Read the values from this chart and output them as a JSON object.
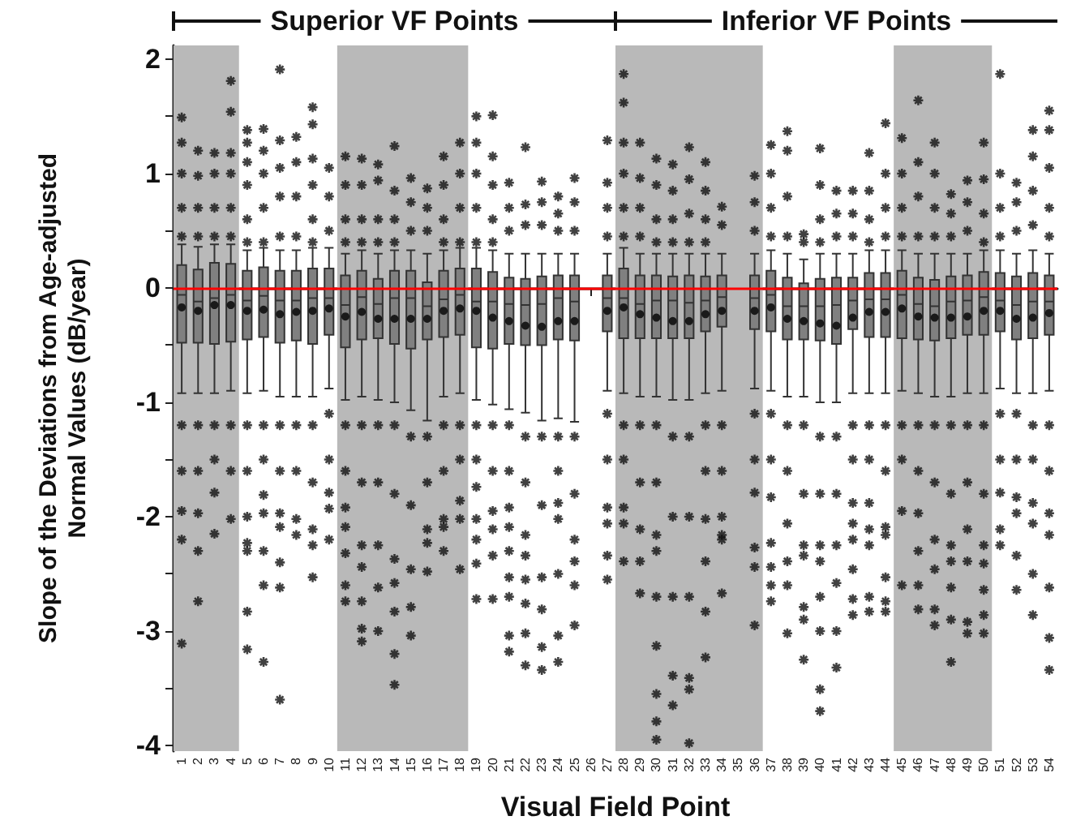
{
  "chart_data": {
    "type": "box",
    "xlabel": "Visual Field Point",
    "ylabel": "Slope of the Deviations from Age-adjusted\nNormal Values (dB/year)",
    "annotations": [
      "Superior VF Points",
      "Inferior VF Points"
    ],
    "categories": [
      "1",
      "2",
      "3",
      "4",
      "5",
      "6",
      "7",
      "8",
      "9",
      "10",
      "11",
      "12",
      "13",
      "14",
      "15",
      "16",
      "17",
      "18",
      "19",
      "20",
      "21",
      "22",
      "23",
      "24",
      "25",
      "26",
      "27",
      "28",
      "29",
      "30",
      "31",
      "32",
      "33",
      "34",
      "35",
      "36",
      "37",
      "38",
      "39",
      "40",
      "41",
      "42",
      "43",
      "44",
      "45",
      "46",
      "47",
      "48",
      "49",
      "50",
      "51",
      "52",
      "53",
      "54"
    ],
    "color": "#808080",
    "boxes": [
      {
        "low": -0.92,
        "q1": -0.48,
        "median": -0.06,
        "q3": 0.2,
        "high": 0.38,
        "mean": -0.17,
        "outliers": [
          1.49,
          1.27,
          1.0,
          0.7,
          0.45,
          -1.2,
          -1.6,
          -1.95,
          -2.2,
          -3.11
        ]
      },
      {
        "low": -0.92,
        "q1": -0.48,
        "median": -0.12,
        "q3": 0.16,
        "high": 0.36,
        "mean": -0.2,
        "outliers": [
          1.2,
          0.98,
          0.7,
          0.45,
          -1.2,
          -1.6,
          -1.97,
          -2.3,
          -2.74
        ]
      },
      {
        "low": -0.92,
        "q1": -0.49,
        "median": -0.09,
        "q3": 0.22,
        "high": 0.38,
        "mean": -0.15,
        "outliers": [
          1.18,
          1.0,
          0.7,
          0.45,
          -1.2,
          -1.5,
          -1.79,
          -2.15
        ]
      },
      {
        "low": -0.9,
        "q1": -0.47,
        "median": -0.06,
        "q3": 0.21,
        "high": 0.38,
        "mean": -0.15,
        "outliers": [
          1.81,
          1.54,
          1.18,
          1.0,
          0.7,
          0.45,
          -1.2,
          -1.6,
          -2.02
        ]
      },
      {
        "low": -0.92,
        "q1": -0.45,
        "median": -0.11,
        "q3": 0.15,
        "high": 0.33,
        "mean": -0.2,
        "outliers": [
          1.38,
          1.27,
          1.1,
          0.9,
          0.6,
          0.4,
          -1.2,
          -1.6,
          -2.0,
          -2.23,
          -2.3,
          -2.83,
          -3.16
        ]
      },
      {
        "low": -0.9,
        "q1": -0.43,
        "median": -0.07,
        "q3": 0.18,
        "high": 0.35,
        "mean": -0.19,
        "outliers": [
          1.39,
          1.2,
          1.0,
          0.7,
          0.4,
          -1.2,
          -1.5,
          -1.81,
          -1.97,
          -2.3,
          -2.6,
          -3.27
        ]
      },
      {
        "low": -0.95,
        "q1": -0.48,
        "median": -0.11,
        "q3": 0.15,
        "high": 0.33,
        "mean": -0.23,
        "outliers": [
          1.91,
          1.29,
          1.05,
          0.8,
          0.45,
          -1.2,
          -1.6,
          -1.97,
          -2.09,
          -2.4,
          -2.62,
          -3.6
        ]
      },
      {
        "low": -0.95,
        "q1": -0.46,
        "median": -0.11,
        "q3": 0.15,
        "high": 0.33,
        "mean": -0.21,
        "outliers": [
          1.32,
          1.1,
          0.8,
          0.45,
          -1.2,
          -1.6,
          -2.02,
          -2.16
        ]
      },
      {
        "low": -0.95,
        "q1": -0.49,
        "median": -0.09,
        "q3": 0.17,
        "high": 0.35,
        "mean": -0.2,
        "outliers": [
          1.58,
          1.43,
          1.13,
          0.9,
          0.6,
          0.4,
          -1.2,
          -1.7,
          -2.11,
          -2.25,
          -2.53
        ]
      },
      {
        "low": -0.88,
        "q1": -0.41,
        "median": -0.09,
        "q3": 0.17,
        "high": 0.35,
        "mean": -0.18,
        "outliers": [
          1.05,
          0.8,
          0.5,
          -1.1,
          -1.5,
          -1.79,
          -1.93,
          -2.2
        ]
      },
      {
        "low": -0.98,
        "q1": -0.52,
        "median": -0.15,
        "q3": 0.11,
        "high": 0.3,
        "mean": -0.25,
        "outliers": [
          1.15,
          0.9,
          0.6,
          0.4,
          -1.2,
          -1.6,
          -1.92,
          -2.09,
          -2.32,
          -2.6,
          -2.74
        ]
      },
      {
        "low": -0.95,
        "q1": -0.45,
        "median": -0.08,
        "q3": 0.15,
        "high": 0.33,
        "mean": -0.21,
        "outliers": [
          1.13,
          0.9,
          0.6,
          0.4,
          -1.2,
          -1.7,
          -2.25,
          -2.44,
          -2.74,
          -2.98,
          -3.09
        ]
      },
      {
        "low": -0.98,
        "q1": -0.44,
        "median": -0.14,
        "q3": 0.08,
        "high": 0.3,
        "mean": -0.27,
        "outliers": [
          1.08,
          0.94,
          0.6,
          0.4,
          -1.2,
          -1.7,
          -2.25,
          -2.62,
          -3.0
        ]
      },
      {
        "low": -1.0,
        "q1": -0.49,
        "median": -0.09,
        "q3": 0.15,
        "high": 0.33,
        "mean": -0.27,
        "outliers": [
          1.24,
          0.85,
          0.6,
          0.4,
          -1.2,
          -1.8,
          -2.37,
          -2.58,
          -2.83,
          -3.2,
          -3.47
        ]
      },
      {
        "low": -1.07,
        "q1": -0.53,
        "median": -0.09,
        "q3": 0.15,
        "high": 0.33,
        "mean": -0.27,
        "outliers": [
          0.96,
          0.75,
          0.5,
          -1.3,
          -1.9,
          -2.46,
          -2.79,
          -3.04
        ]
      },
      {
        "low": -1.16,
        "q1": -0.45,
        "median": -0.16,
        "q3": 0.05,
        "high": 0.3,
        "mean": -0.27,
        "outliers": [
          0.87,
          0.7,
          0.5,
          -1.3,
          -1.7,
          -2.11,
          -2.23,
          -2.48
        ]
      },
      {
        "low": -0.95,
        "q1": -0.43,
        "median": -0.1,
        "q3": 0.15,
        "high": 0.33,
        "mean": -0.2,
        "outliers": [
          1.15,
          0.9,
          0.6,
          0.4,
          -1.2,
          -1.6,
          -2.02,
          -2.09,
          -2.3
        ]
      },
      {
        "low": -0.92,
        "q1": -0.41,
        "median": -0.06,
        "q3": 0.17,
        "high": 0.35,
        "mean": -0.18,
        "outliers": [
          1.27,
          1.0,
          0.7,
          0.4,
          -1.2,
          -1.5,
          -1.86,
          -2.02,
          -2.46
        ]
      },
      {
        "low": -0.98,
        "q1": -0.52,
        "median": -0.12,
        "q3": 0.17,
        "high": 0.35,
        "mean": -0.2,
        "outliers": [
          1.5,
          1.27,
          1.0,
          0.7,
          0.4,
          -1.2,
          -1.5,
          -1.74,
          -2.02,
          -2.2,
          -2.41,
          -2.72
        ]
      },
      {
        "low": -1.02,
        "q1": -0.53,
        "median": -0.12,
        "q3": 0.14,
        "high": 0.33,
        "mean": -0.26,
        "outliers": [
          1.51,
          1.15,
          0.9,
          0.6,
          0.4,
          -1.2,
          -1.6,
          -1.95,
          -2.11,
          -2.34,
          -2.72
        ]
      },
      {
        "low": -1.06,
        "q1": -0.49,
        "median": -0.14,
        "q3": 0.09,
        "high": 0.3,
        "mean": -0.29,
        "outliers": [
          0.92,
          0.7,
          0.5,
          -1.2,
          -1.6,
          -1.92,
          -2.09,
          -2.3,
          -2.53,
          -2.7,
          -3.04,
          -3.18
        ]
      },
      {
        "low": -1.09,
        "q1": -0.5,
        "median": -0.15,
        "q3": 0.08,
        "high": 0.3,
        "mean": -0.33,
        "outliers": [
          1.23,
          0.73,
          0.55,
          -1.3,
          -1.7,
          -2.16,
          -2.34,
          -2.55,
          -2.76,
          -3.02,
          -3.3
        ]
      },
      {
        "low": -1.16,
        "q1": -0.5,
        "median": -0.14,
        "q3": 0.1,
        "high": 0.3,
        "mean": -0.34,
        "outliers": [
          0.93,
          0.75,
          0.55,
          -1.3,
          -1.9,
          -2.53,
          -2.81,
          -3.14,
          -3.34
        ]
      },
      {
        "low": -1.14,
        "q1": -0.45,
        "median": -0.09,
        "q3": 0.11,
        "high": 0.3,
        "mean": -0.29,
        "outliers": [
          0.8,
          0.65,
          0.5,
          -1.3,
          -1.6,
          -1.88,
          -2.02,
          -2.5,
          -3.04,
          -3.27
        ]
      },
      {
        "low": -1.17,
        "q1": -0.46,
        "median": -0.12,
        "q3": 0.11,
        "high": 0.3,
        "mean": -0.29,
        "outliers": [
          0.96,
          0.75,
          0.5,
          -1.3,
          -1.8,
          -2.2,
          -2.39,
          -2.6,
          -2.95
        ]
      },
      null,
      {
        "low": -0.9,
        "q1": -0.38,
        "median": -0.09,
        "q3": 0.11,
        "high": 0.3,
        "mean": -0.2,
        "outliers": [
          1.29,
          0.92,
          0.7,
          0.45,
          -1.1,
          -1.5,
          -1.92,
          -2.06,
          -2.34,
          -2.55
        ]
      },
      {
        "low": -0.92,
        "q1": -0.44,
        "median": -0.09,
        "q3": 0.17,
        "high": 0.35,
        "mean": -0.17,
        "outliers": [
          1.87,
          1.62,
          1.27,
          1.0,
          0.7,
          0.45,
          -1.2,
          -1.5,
          -1.92,
          -2.06,
          -2.39
        ]
      },
      {
        "low": -0.95,
        "q1": -0.44,
        "median": -0.14,
        "q3": 0.11,
        "high": 0.3,
        "mean": -0.23,
        "outliers": [
          1.27,
          0.96,
          0.7,
          0.45,
          -1.2,
          -1.7,
          -2.11,
          -2.39,
          -2.67
        ]
      },
      {
        "low": -0.95,
        "q1": -0.44,
        "median": -0.11,
        "q3": 0.11,
        "high": 0.3,
        "mean": -0.26,
        "outliers": [
          1.13,
          0.9,
          0.6,
          0.4,
          -1.2,
          -1.7,
          -2.16,
          -2.3,
          -2.7,
          -3.13,
          -3.55,
          -3.79,
          -3.95
        ]
      },
      {
        "low": -0.98,
        "q1": -0.44,
        "median": -0.11,
        "q3": 0.1,
        "high": 0.3,
        "mean": -0.29,
        "outliers": [
          1.08,
          0.85,
          0.6,
          0.4,
          -1.3,
          -2.0,
          -2.7,
          -3.39,
          -3.65
        ]
      },
      {
        "low": -0.98,
        "q1": -0.44,
        "median": -0.13,
        "q3": 0.11,
        "high": 0.3,
        "mean": -0.29,
        "outliers": [
          1.23,
          0.95,
          0.65,
          0.4,
          -1.3,
          -2.0,
          -2.7,
          -3.41,
          -3.51,
          -3.98
        ]
      },
      {
        "low": -0.92,
        "q1": -0.38,
        "median": -0.11,
        "q3": 0.1,
        "high": 0.3,
        "mean": -0.23,
        "outliers": [
          1.1,
          0.85,
          0.6,
          0.4,
          -1.2,
          -1.6,
          -2.02,
          -2.39,
          -2.83,
          -3.23
        ]
      },
      {
        "low": -0.9,
        "q1": -0.34,
        "median": -0.08,
        "q3": 0.11,
        "high": 0.3,
        "mean": -0.2,
        "outliers": [
          0.71,
          0.55,
          -1.2,
          -1.6,
          -2.0,
          -2.16,
          -2.2,
          -2.67
        ]
      },
      null,
      {
        "low": -0.88,
        "q1": -0.36,
        "median": -0.09,
        "q3": 0.11,
        "high": 0.3,
        "mean": -0.2,
        "outliers": [
          0.98,
          0.75,
          0.5,
          -1.1,
          -1.5,
          -1.79,
          -2.27,
          -2.44,
          -2.95
        ]
      },
      {
        "low": -0.9,
        "q1": -0.38,
        "median": -0.06,
        "q3": 0.15,
        "high": 0.33,
        "mean": -0.17,
        "outliers": [
          1.25,
          1.0,
          0.7,
          0.45,
          -1.1,
          -1.5,
          -1.83,
          -2.23,
          -2.44,
          -2.6,
          -2.74
        ]
      },
      {
        "low": -0.95,
        "q1": -0.45,
        "median": -0.16,
        "q3": 0.09,
        "high": 0.3,
        "mean": -0.27,
        "outliers": [
          1.37,
          1.2,
          0.8,
          0.45,
          -1.2,
          -1.6,
          -2.06,
          -2.39,
          -2.6,
          -3.02
        ]
      },
      {
        "low": -0.95,
        "q1": -0.45,
        "median": -0.16,
        "q3": 0.04,
        "high": 0.25,
        "mean": -0.29,
        "outliers": [
          0.47,
          0.4,
          -1.2,
          -1.8,
          -2.25,
          -2.34,
          -2.79,
          -2.9,
          -3.25
        ]
      },
      {
        "low": -1.0,
        "q1": -0.46,
        "median": -0.16,
        "q3": 0.08,
        "high": 0.3,
        "mean": -0.31,
        "outliers": [
          1.22,
          0.9,
          0.6,
          0.4,
          -1.3,
          -1.8,
          -2.25,
          -2.39,
          -2.7,
          -3.0,
          -3.51,
          -3.7
        ]
      },
      {
        "low": -1.0,
        "q1": -0.49,
        "median": -0.15,
        "q3": 0.09,
        "high": 0.3,
        "mean": -0.33,
        "outliers": [
          0.85,
          0.65,
          0.45,
          -1.3,
          -1.8,
          -2.25,
          -2.58,
          -3.0,
          -3.32
        ]
      },
      {
        "low": -0.92,
        "q1": -0.36,
        "median": -0.11,
        "q3": 0.09,
        "high": 0.3,
        "mean": -0.26,
        "outliers": [
          0.85,
          0.65,
          0.45,
          -1.2,
          -1.5,
          -1.88,
          -2.06,
          -2.2,
          -2.46,
          -2.72,
          -2.86
        ]
      },
      {
        "low": -0.92,
        "q1": -0.43,
        "median": -0.1,
        "q3": 0.13,
        "high": 0.33,
        "mean": -0.21,
        "outliers": [
          1.18,
          0.85,
          0.6,
          0.4,
          -1.2,
          -1.5,
          -1.88,
          -2.11,
          -2.25,
          -2.7,
          -2.83
        ]
      },
      {
        "low": -0.92,
        "q1": -0.43,
        "median": -0.1,
        "q3": 0.13,
        "high": 0.33,
        "mean": -0.21,
        "outliers": [
          1.44,
          1.0,
          0.7,
          0.45,
          -1.2,
          -1.6,
          -2.09,
          -2.16,
          -2.53,
          -2.74,
          -2.83
        ]
      },
      {
        "low": -0.9,
        "q1": -0.44,
        "median": -0.06,
        "q3": 0.15,
        "high": 0.33,
        "mean": -0.18,
        "outliers": [
          1.31,
          1.0,
          0.7,
          0.45,
          -1.2,
          -1.5,
          -1.95,
          -2.6
        ]
      },
      {
        "low": -0.92,
        "q1": -0.45,
        "median": -0.14,
        "q3": 0.09,
        "high": 0.3,
        "mean": -0.25,
        "outliers": [
          1.64,
          1.1,
          0.8,
          0.45,
          -1.2,
          -1.6,
          -1.97,
          -2.3,
          -2.6,
          -2.81
        ]
      },
      {
        "low": -0.95,
        "q1": -0.46,
        "median": -0.16,
        "q3": 0.07,
        "high": 0.3,
        "mean": -0.26,
        "outliers": [
          1.27,
          1.0,
          0.7,
          0.45,
          -1.2,
          -1.7,
          -2.2,
          -2.46,
          -2.81,
          -2.95
        ]
      },
      {
        "low": -0.95,
        "q1": -0.44,
        "median": -0.12,
        "q3": 0.1,
        "high": 0.3,
        "mean": -0.26,
        "outliers": [
          0.82,
          0.65,
          0.45,
          -1.2,
          -1.8,
          -2.25,
          -2.39,
          -2.62,
          -2.9,
          -3.27
        ]
      },
      {
        "low": -0.92,
        "q1": -0.41,
        "median": -0.11,
        "q3": 0.11,
        "high": 0.3,
        "mean": -0.25,
        "outliers": [
          0.94,
          0.75,
          0.5,
          -1.2,
          -1.7,
          -2.11,
          -2.39,
          -2.92,
          -3.02
        ]
      },
      {
        "low": -0.92,
        "q1": -0.41,
        "median": -0.08,
        "q3": 0.14,
        "high": 0.33,
        "mean": -0.2,
        "outliers": [
          1.27,
          0.95,
          0.65,
          0.4,
          -1.2,
          -1.8,
          -2.25,
          -2.41,
          -2.64,
          -2.86,
          -3.02
        ]
      },
      {
        "low": -0.88,
        "q1": -0.38,
        "median": -0.11,
        "q3": 0.13,
        "high": 0.33,
        "mean": -0.2,
        "outliers": [
          1.87,
          1.0,
          0.7,
          0.45,
          -1.1,
          -1.5,
          -1.79,
          -2.11,
          -2.25
        ]
      },
      {
        "low": -0.92,
        "q1": -0.45,
        "median": -0.15,
        "q3": 0.1,
        "high": 0.3,
        "mean": -0.27,
        "outliers": [
          0.92,
          0.75,
          0.5,
          -1.1,
          -1.5,
          -1.83,
          -1.97,
          -2.34,
          -2.64
        ]
      },
      {
        "low": -0.92,
        "q1": -0.44,
        "median": -0.12,
        "q3": 0.13,
        "high": 0.33,
        "mean": -0.26,
        "outliers": [
          1.38,
          1.15,
          0.85,
          0.55,
          -1.2,
          -1.5,
          -1.88,
          -2.06,
          -2.5,
          -2.86
        ]
      },
      {
        "low": -0.9,
        "q1": -0.41,
        "median": -0.12,
        "q3": 0.11,
        "high": 0.3,
        "mean": -0.22,
        "outliers": [
          1.55,
          1.38,
          1.05,
          0.7,
          0.45,
          -1.2,
          -1.6,
          -1.97,
          -2.16,
          -2.62,
          -3.06,
          -3.34
        ]
      }
    ],
    "bands": [
      {
        "axis": "x",
        "from": "1",
        "to": "4",
        "color": "#b9b9b9"
      },
      {
        "axis": "x",
        "from": "11",
        "to": "18",
        "color": "#b9b9b9"
      },
      {
        "axis": "x",
        "from": "28",
        "to": "36",
        "color": "#b9b9b9"
      },
      {
        "axis": "x",
        "from": "45",
        "to": "50",
        "color": "#b9b9b9"
      }
    ],
    "ref_lines": [
      {
        "axis": "y",
        "value": 0,
        "color": "#ff0000",
        "line_style": "solid"
      }
    ],
    "ylim": [
      -4.05,
      2.12
    ],
    "yticks": [
      -4,
      {
        "value": -3.5,
        "label": null
      },
      -3,
      {
        "value": -2.5,
        "label": null
      },
      -2,
      {
        "value": -1.5,
        "label": null
      },
      -1,
      {
        "value": -0.5,
        "label": null
      },
      0,
      {
        "value": 0.5,
        "label": null
      },
      1,
      {
        "value": 1.5,
        "label": null
      },
      2
    ],
    "grid": false
  }
}
